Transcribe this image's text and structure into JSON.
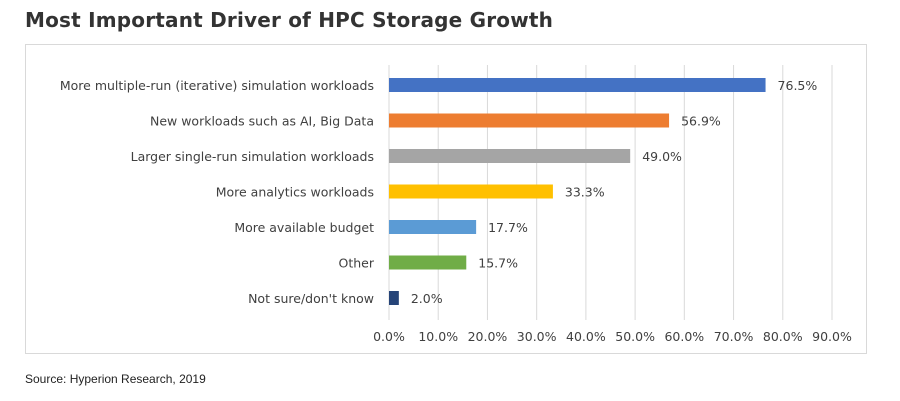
{
  "page": {
    "title": "Most Important Driver of HPC Storage Growth",
    "source": "Source: Hyperion Research, 2019"
  },
  "chart_data": {
    "type": "bar",
    "orientation": "horizontal",
    "title": "Most Important Driver of HPC Storage Growth",
    "xlabel": "",
    "ylabel": "",
    "xlim": [
      0,
      90
    ],
    "x_ticks": [
      "0.0%",
      "10.0%",
      "20.0%",
      "30.0%",
      "40.0%",
      "50.0%",
      "60.0%",
      "70.0%",
      "80.0%",
      "90.0%"
    ],
    "grid": "vertical",
    "legend": "none",
    "categories": [
      "More multiple-run (iterative) simulation workloads",
      "New workloads such as AI, Big Data",
      "Larger single-run simulation workloads",
      "More analytics workloads",
      "More available budget",
      "Other",
      "Not sure/don't know"
    ],
    "values": [
      76.5,
      56.9,
      49.0,
      33.3,
      17.7,
      15.7,
      2.0
    ],
    "data_labels": [
      "76.5%",
      "56.9%",
      "49.0%",
      "33.3%",
      "17.7%",
      "15.7%",
      "2.0%"
    ],
    "colors": [
      "#4472c4",
      "#ed7d31",
      "#a5a5a5",
      "#ffc000",
      "#5b9bd5",
      "#70ad47",
      "#264478"
    ]
  }
}
